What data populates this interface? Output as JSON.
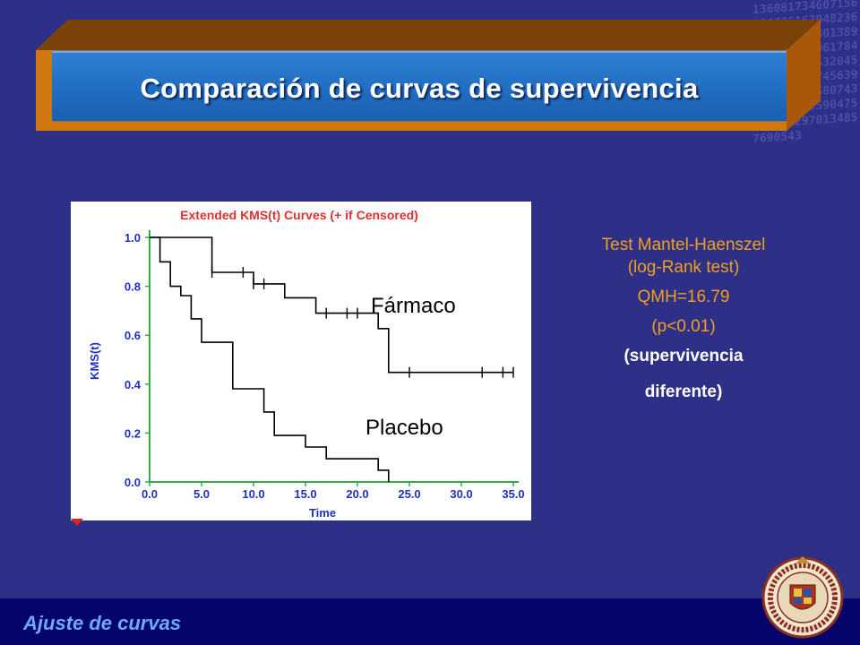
{
  "slide": {
    "title": "Comparación de curvas de supervivencia",
    "footer": "Ajuste de curvas",
    "background_numbers": "1360817346071563047851639482367160378568013894751304899617845631769485320456174501387456394853207415807436512074385904751384652970134857690543"
  },
  "colors": {
    "background": "#2e2f86",
    "banner_orange": "#d07810",
    "title_blue": "#2272c6",
    "side_text_orange": "#f0a020",
    "footer_text": "#6fa8ff",
    "chart_title_red": "#e03030",
    "chart_axis_blue": "#2030c0",
    "chart_frame_green": "#30b040"
  },
  "side_text": {
    "line1": "Test Mantel-Haenszel",
    "line2": "(log-Rank test)",
    "line3": "QMH=16.79",
    "line4": "(p<0.01)",
    "line5": "(supervivencia",
    "line6": "diferente)"
  },
  "chart_data": {
    "type": "line",
    "step": true,
    "title": "Extended KMS(t) Curves (+ if Censored)",
    "xlabel": "Time",
    "ylabel": "KMS(t)",
    "xlim": [
      0,
      35
    ],
    "ylim": [
      0,
      1
    ],
    "xticks": [
      "0.0",
      "5.0",
      "10.0",
      "15.0",
      "20.0",
      "25.0",
      "30.0",
      "35.0"
    ],
    "yticks": [
      "0.0",
      "0.2",
      "0.4",
      "0.6",
      "0.8",
      "1.0"
    ],
    "grid": false,
    "series": [
      {
        "name": "Fármaco",
        "points": [
          [
            0,
            1.0
          ],
          [
            6,
            1.0
          ],
          [
            6,
            0.857
          ],
          [
            10,
            0.857
          ],
          [
            10,
            0.81
          ],
          [
            13,
            0.81
          ],
          [
            13,
            0.753
          ],
          [
            16,
            0.753
          ],
          [
            16,
            0.69
          ],
          [
            22,
            0.69
          ],
          [
            22,
            0.627
          ],
          [
            23,
            0.627
          ],
          [
            23,
            0.448
          ],
          [
            35,
            0.448
          ]
        ],
        "censored": [
          6,
          9,
          10,
          11,
          17,
          19,
          20,
          25,
          32,
          34,
          35
        ]
      },
      {
        "name": "Placebo",
        "points": [
          [
            0,
            1.0
          ],
          [
            1,
            1.0
          ],
          [
            1,
            0.9
          ],
          [
            2,
            0.9
          ],
          [
            2,
            0.8
          ],
          [
            3,
            0.8
          ],
          [
            3,
            0.762
          ],
          [
            4,
            0.762
          ],
          [
            4,
            0.667
          ],
          [
            5,
            0.667
          ],
          [
            5,
            0.571
          ],
          [
            8,
            0.571
          ],
          [
            8,
            0.381
          ],
          [
            11,
            0.381
          ],
          [
            11,
            0.286
          ],
          [
            12,
            0.286
          ],
          [
            12,
            0.19
          ],
          [
            15,
            0.19
          ],
          [
            15,
            0.143
          ],
          [
            17,
            0.143
          ],
          [
            17,
            0.095
          ],
          [
            22,
            0.095
          ],
          [
            22,
            0.048
          ],
          [
            23,
            0.048
          ],
          [
            23,
            0.0
          ]
        ],
        "censored": []
      }
    ]
  }
}
